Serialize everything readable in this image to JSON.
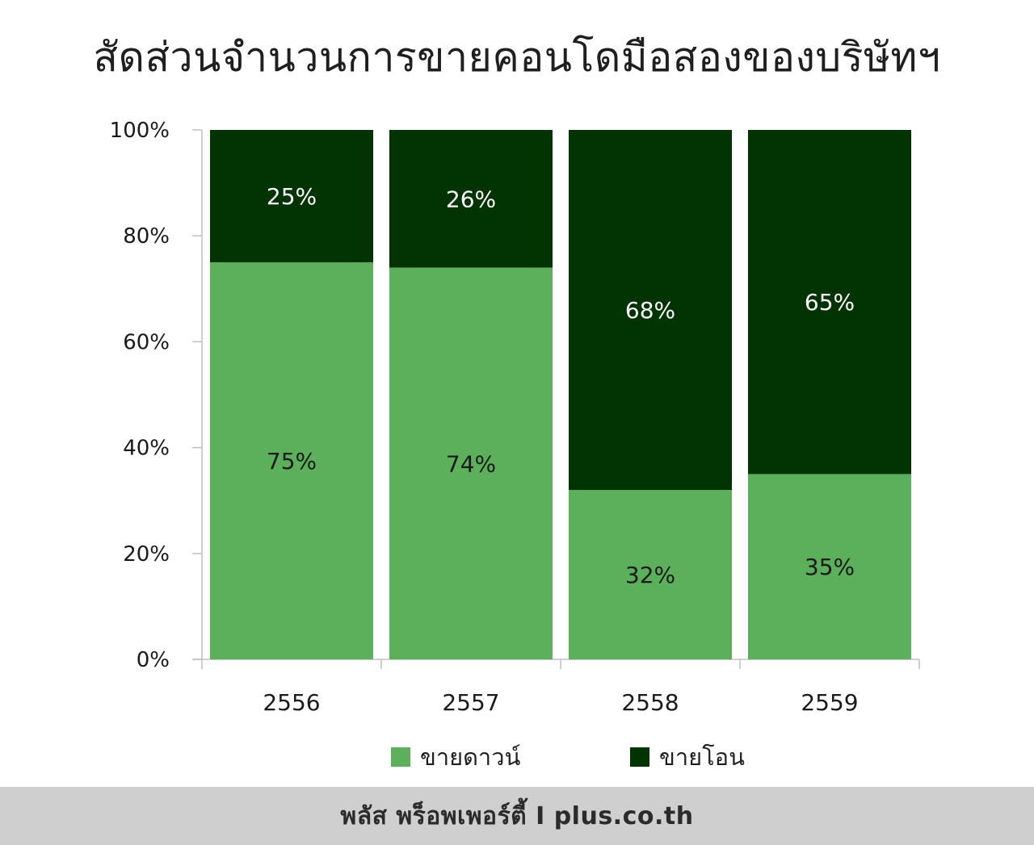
{
  "title": "สัดส่วนจำนวนการขายคอนโดมือสองของบริษัทฯ",
  "chart_data": {
    "type": "bar",
    "stacked": true,
    "categories": [
      "2556",
      "2557",
      "2558",
      "2559"
    ],
    "series": [
      {
        "name": "ขายดาวน์",
        "values": [
          75,
          74,
          32,
          35
        ],
        "labels": [
          "75%",
          "74%",
          "32%",
          "35%"
        ],
        "color": "#5cb05c",
        "label_color": "#1a1a1a"
      },
      {
        "name": "ขายโอน",
        "values": [
          25,
          26,
          68,
          65
        ],
        "labels": [
          "25%",
          "26%",
          "68%",
          "65%"
        ],
        "color": "#023302",
        "label_color": "#ffffff"
      }
    ],
    "ylim": [
      0,
      100
    ],
    "yticks": [
      0,
      20,
      40,
      60,
      80,
      100
    ],
    "ytick_labels": [
      "0%",
      "20%",
      "40%",
      "60%",
      "80%",
      "100%"
    ],
    "grid": false,
    "legend_position": "bottom",
    "axis_color": "#bfbfbf"
  },
  "footer": {
    "text": "พลัส  พร็อพเพอร์ตี้  I  plus.co.th",
    "background": "#cfcfcf"
  }
}
